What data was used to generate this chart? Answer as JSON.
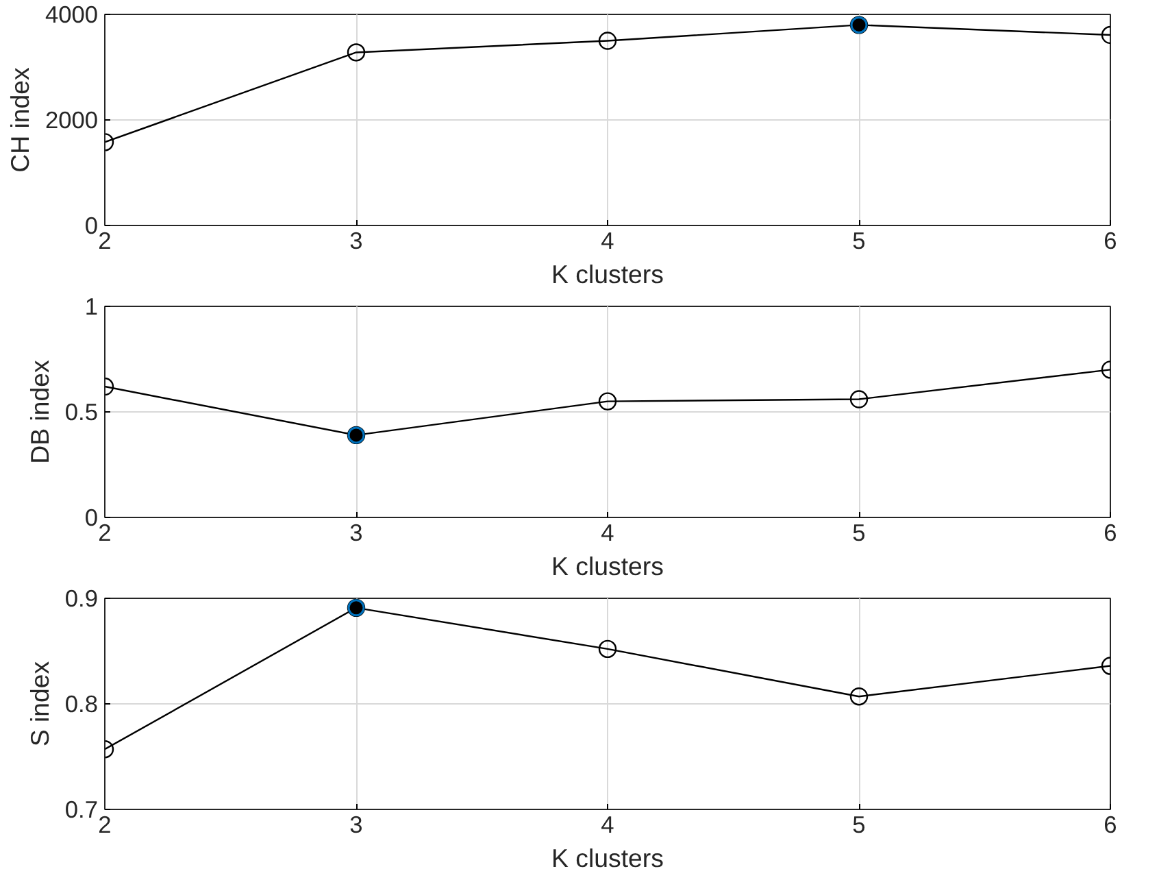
{
  "chart_data": [
    {
      "type": "line",
      "xlabel": "K clusters",
      "ylabel": "CH index",
      "x": [
        2,
        3,
        4,
        5,
        6
      ],
      "xlim": [
        2,
        6
      ],
      "xticks": [
        2,
        3,
        4,
        5,
        6
      ],
      "ylim": [
        0,
        4000
      ],
      "yticks": [
        0,
        2000,
        4000
      ],
      "grid": true,
      "marker": "circle",
      "series": [
        {
          "color": "#000000",
          "values": [
            1580,
            3280,
            3500,
            3800,
            3610
          ]
        },
        {
          "type": "scatter",
          "color": "#000000",
          "values": [
            null,
            null,
            null,
            3800,
            null
          ]
        }
      ]
    },
    {
      "type": "line",
      "xlabel": "K clusters",
      "ylabel": "DB index",
      "x": [
        2,
        3,
        4,
        5,
        6
      ],
      "xlim": [
        2,
        6
      ],
      "xticks": [
        2,
        3,
        4,
        5,
        6
      ],
      "ylim": [
        0,
        1
      ],
      "yticks": [
        0,
        0.5,
        1
      ],
      "grid": true,
      "marker": "circle",
      "series": [
        {
          "color": "#000000",
          "values": [
            0.62,
            0.39,
            0.55,
            0.56,
            0.7
          ]
        },
        {
          "type": "scatter",
          "color": "#000000",
          "values": [
            null,
            0.39,
            null,
            null,
            null
          ]
        }
      ]
    },
    {
      "type": "line",
      "xlabel": "K clusters",
      "ylabel": "S index",
      "x": [
        2,
        3,
        4,
        5,
        6
      ],
      "xlim": [
        2,
        6
      ],
      "xticks": [
        2,
        3,
        4,
        5,
        6
      ],
      "ylim": [
        0.7,
        0.9
      ],
      "yticks": [
        0.7,
        0.8,
        0.9
      ],
      "grid": true,
      "marker": "circle",
      "series": [
        {
          "color": "#000000",
          "values": [
            0.757,
            0.891,
            0.852,
            0.807,
            0.836
          ]
        },
        {
          "type": "scatter",
          "color": "#000000",
          "values": [
            null,
            0.891,
            null,
            null,
            null
          ]
        }
      ]
    }
  ]
}
